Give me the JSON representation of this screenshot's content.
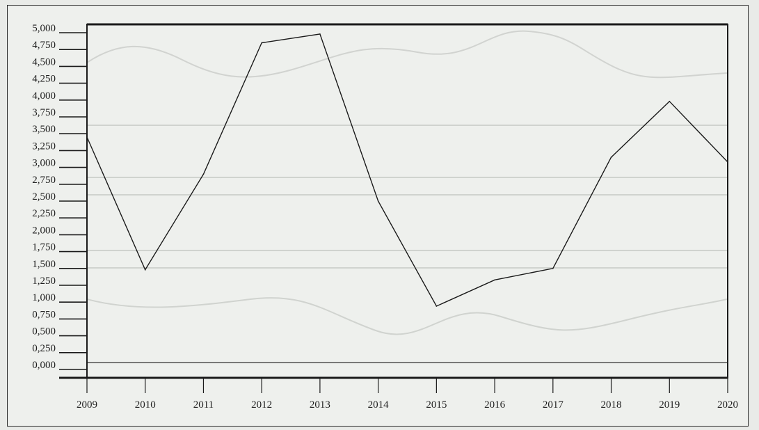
{
  "chart_data": {
    "type": "line",
    "title": "",
    "xlabel": "",
    "ylabel": "",
    "x": [
      "2009",
      "2010",
      "2011",
      "2012",
      "2013",
      "2014",
      "2015",
      "2016",
      "2017",
      "2018",
      "2019",
      "2020"
    ],
    "series": [
      {
        "values": [
          3.45,
          1.48,
          2.9,
          4.85,
          4.98,
          2.5,
          0.94,
          1.33,
          1.5,
          3.15,
          3.98,
          3.08
        ]
      }
    ],
    "reference_line": 0.1,
    "ylim": [
      0,
      5
    ],
    "yticks": [
      "0,000",
      "0,250",
      "0,500",
      "0,750",
      "1,000",
      "1,250",
      "1,500",
      "1,750",
      "2,000",
      "2,250",
      "2,500",
      "2,750",
      "3,000",
      "3,250",
      "3,500",
      "3,750",
      "4,000",
      "4,250",
      "4,500",
      "4,750",
      "5,000"
    ],
    "grid": false,
    "colors": {
      "line": "#1a1a1a",
      "axis": "#1a1a1a",
      "background": "#eef0ed"
    }
  }
}
